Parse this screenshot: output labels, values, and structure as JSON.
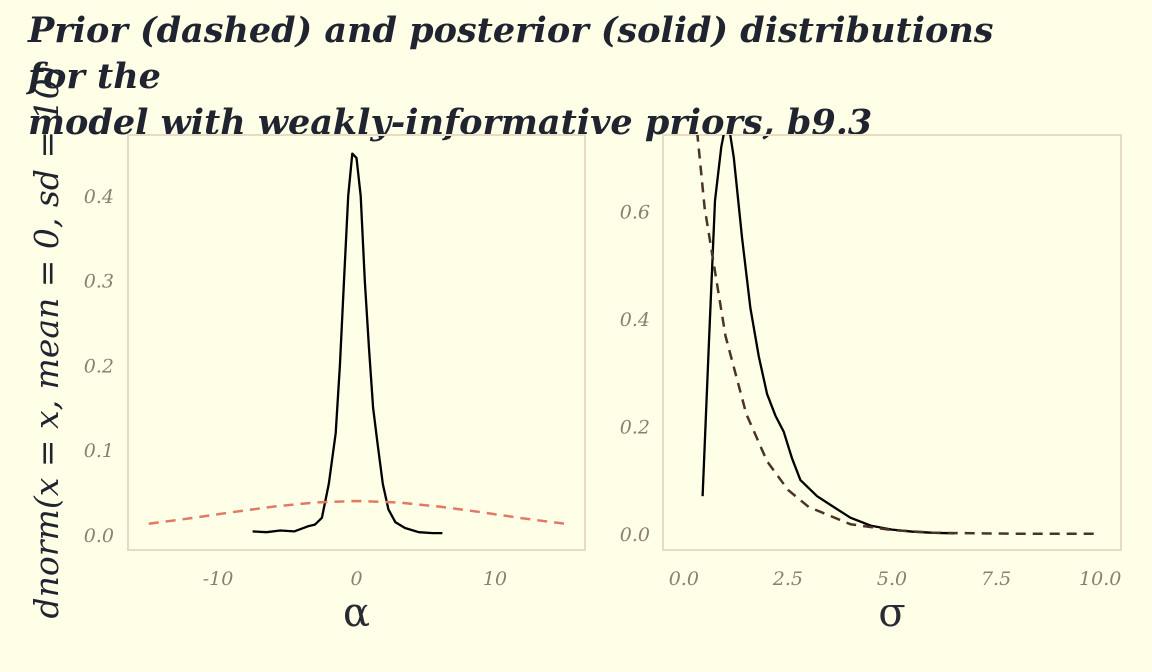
{
  "title": {
    "line1": "Prior (dashed) and posterior (solid) distributions for the",
    "line2": "model with weakly-informative priors, b9.3"
  },
  "colors": {
    "background": "#fffee6",
    "panel_border": "#e6dcc3",
    "posterior": "#000000",
    "prior_alpha": "#e07a66",
    "prior_sigma": "#4a3428"
  },
  "chart_data": [
    {
      "type": "line",
      "panel": "alpha",
      "xlabel": "α",
      "ylabel": "dnorm(x = x, mean = 0, sd = 10)",
      "xlim": [
        -16.5,
        16.5
      ],
      "ylim": [
        -0.018,
        0.472
      ],
      "x_ticks": [
        -10,
        0,
        10
      ],
      "x_tick_labels": [
        "-10",
        "0",
        "10"
      ],
      "y_ticks": [
        0.0,
        0.1,
        0.2,
        0.3,
        0.4
      ],
      "y_tick_labels": [
        "0.0",
        "0.1",
        "0.2",
        "0.3",
        "0.4"
      ],
      "grid": false,
      "series": [
        {
          "style": "solid",
          "x": [
            -7.5,
            -6.5,
            -5.5,
            -4.5,
            -3.5,
            -3.0,
            -2.5,
            -2.0,
            -1.5,
            -1.2,
            -0.9,
            -0.6,
            -0.3,
            0.0,
            0.3,
            0.6,
            0.9,
            1.2,
            1.5,
            1.9,
            2.3,
            2.8,
            3.5,
            4.5,
            5.5,
            6.2
          ],
          "y": [
            0.004,
            0.003,
            0.005,
            0.004,
            0.01,
            0.012,
            0.02,
            0.06,
            0.12,
            0.2,
            0.3,
            0.4,
            0.45,
            0.445,
            0.4,
            0.3,
            0.22,
            0.15,
            0.11,
            0.06,
            0.03,
            0.015,
            0.008,
            0.003,
            0.002,
            0.002
          ]
        },
        {
          "style": "dashed",
          "x": [
            -15,
            -12,
            -9,
            -6,
            -3,
            0,
            3,
            6,
            9,
            12,
            15
          ],
          "y": [
            0.013,
            0.0194,
            0.0266,
            0.0333,
            0.0381,
            0.0399,
            0.0381,
            0.0333,
            0.0266,
            0.0194,
            0.013
          ]
        }
      ]
    },
    {
      "type": "line",
      "panel": "sigma",
      "xlabel": "σ",
      "xlim": [
        -0.5,
        10.5
      ],
      "ylim": [
        -0.03,
        0.742
      ],
      "x_ticks": [
        0.0,
        2.5,
        5.0,
        7.5,
        10.0
      ],
      "x_tick_labels": [
        "0.0",
        "2.5",
        "5.0",
        "7.5",
        "10.0"
      ],
      "y_ticks": [
        0.0,
        0.2,
        0.4,
        0.6
      ],
      "y_tick_labels": [
        "0.0",
        "0.2",
        "0.4",
        "0.6"
      ],
      "grid": false,
      "series": [
        {
          "style": "solid",
          "x": [
            0.45,
            0.6,
            0.75,
            0.9,
            1.0,
            1.1,
            1.2,
            1.4,
            1.6,
            1.8,
            2.0,
            2.2,
            2.4,
            2.6,
            2.8,
            3.2,
            3.6,
            4.0,
            4.5,
            5.0,
            5.5,
            6.0,
            6.5
          ],
          "y": [
            0.07,
            0.35,
            0.62,
            0.72,
            0.76,
            0.75,
            0.7,
            0.55,
            0.42,
            0.33,
            0.26,
            0.22,
            0.19,
            0.14,
            0.1,
            0.07,
            0.05,
            0.03,
            0.015,
            0.008,
            0.004,
            0.002,
            0.001
          ]
        },
        {
          "style": "dashed",
          "x": [
            0.0,
            0.5,
            1.0,
            1.5,
            2.0,
            2.5,
            3.0,
            4.0,
            5.0,
            6.0,
            7.0,
            8.0,
            9.0,
            10.0
          ],
          "y": [
            1.0,
            0.607,
            0.368,
            0.223,
            0.135,
            0.082,
            0.05,
            0.018,
            0.007,
            0.002,
            0.001,
            0.0003,
            0.0001,
            5e-05
          ]
        }
      ]
    }
  ]
}
